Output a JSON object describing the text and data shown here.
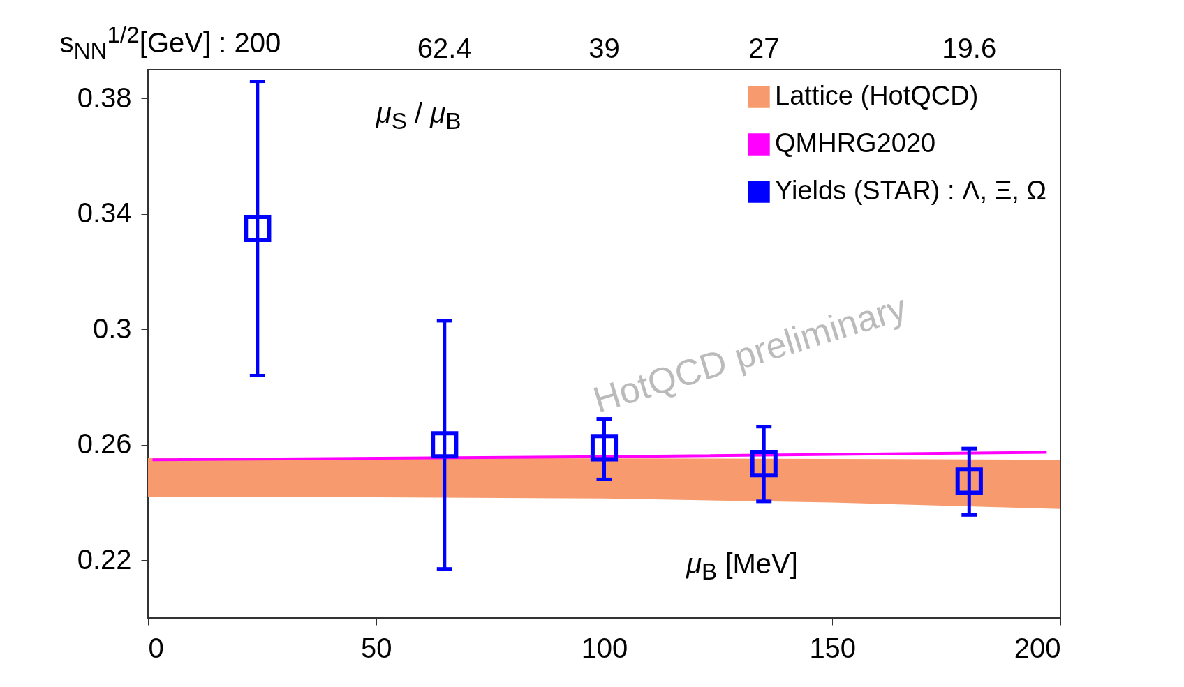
{
  "chart_data": {
    "type": "scatter",
    "xlabel": "μ$_{B}$ [MeV]",
    "ylabel": "μ$_{S}$ / μ$_{B}$",
    "annotations": [
      "HotQCD preliminary",
      "s$_{NN}$$^{1/2}$[GeV] : 200",
      "62.4",
      "39",
      "27",
      "19.6"
    ],
    "xlim": [
      0,
      200
    ],
    "xticks": [
      0,
      50,
      100,
      150,
      200
    ],
    "ylim": [
      0.2,
      0.39
    ],
    "yticks": [
      0.22,
      0.26,
      0.3,
      0.34,
      0.38
    ],
    "grid": false,
    "legend": "top right",
    "series": [
      {
        "name": "Lattice (HotQCD)",
        "type": "area",
        "color": "#f79a6e",
        "x": [
          0,
          50,
          100,
          150,
          200
        ],
        "values": [
          null,
          null,
          null,
          null,
          null
        ],
        "lower": [
          0.242,
          0.2418,
          0.2414,
          0.24,
          0.2378
        ],
        "upper": [
          0.2556,
          0.2555,
          0.2553,
          0.2551,
          0.2548
        ]
      },
      {
        "name": "QMHRG2020",
        "type": "line",
        "color": "#ff00ff",
        "x": [
          1,
          100,
          197
        ],
        "values": [
          0.2548,
          0.2559,
          0.2574
        ]
      },
      {
        "name": "Yields (STAR) : Λ, Ξ, Ω",
        "type": "scatter",
        "marker": "square",
        "color": "#0000ff",
        "x": [
          24,
          65,
          100,
          135,
          180
        ],
        "values": [
          0.335,
          0.26,
          0.259,
          0.2535,
          0.2474
        ],
        "errors": [
          [
            0.284,
            0.386
          ],
          [
            0.217,
            0.303
          ],
          [
            0.248,
            0.269
          ],
          [
            0.2404,
            0.2663
          ],
          [
            0.2357,
            0.2587
          ]
        ]
      }
    ]
  }
}
